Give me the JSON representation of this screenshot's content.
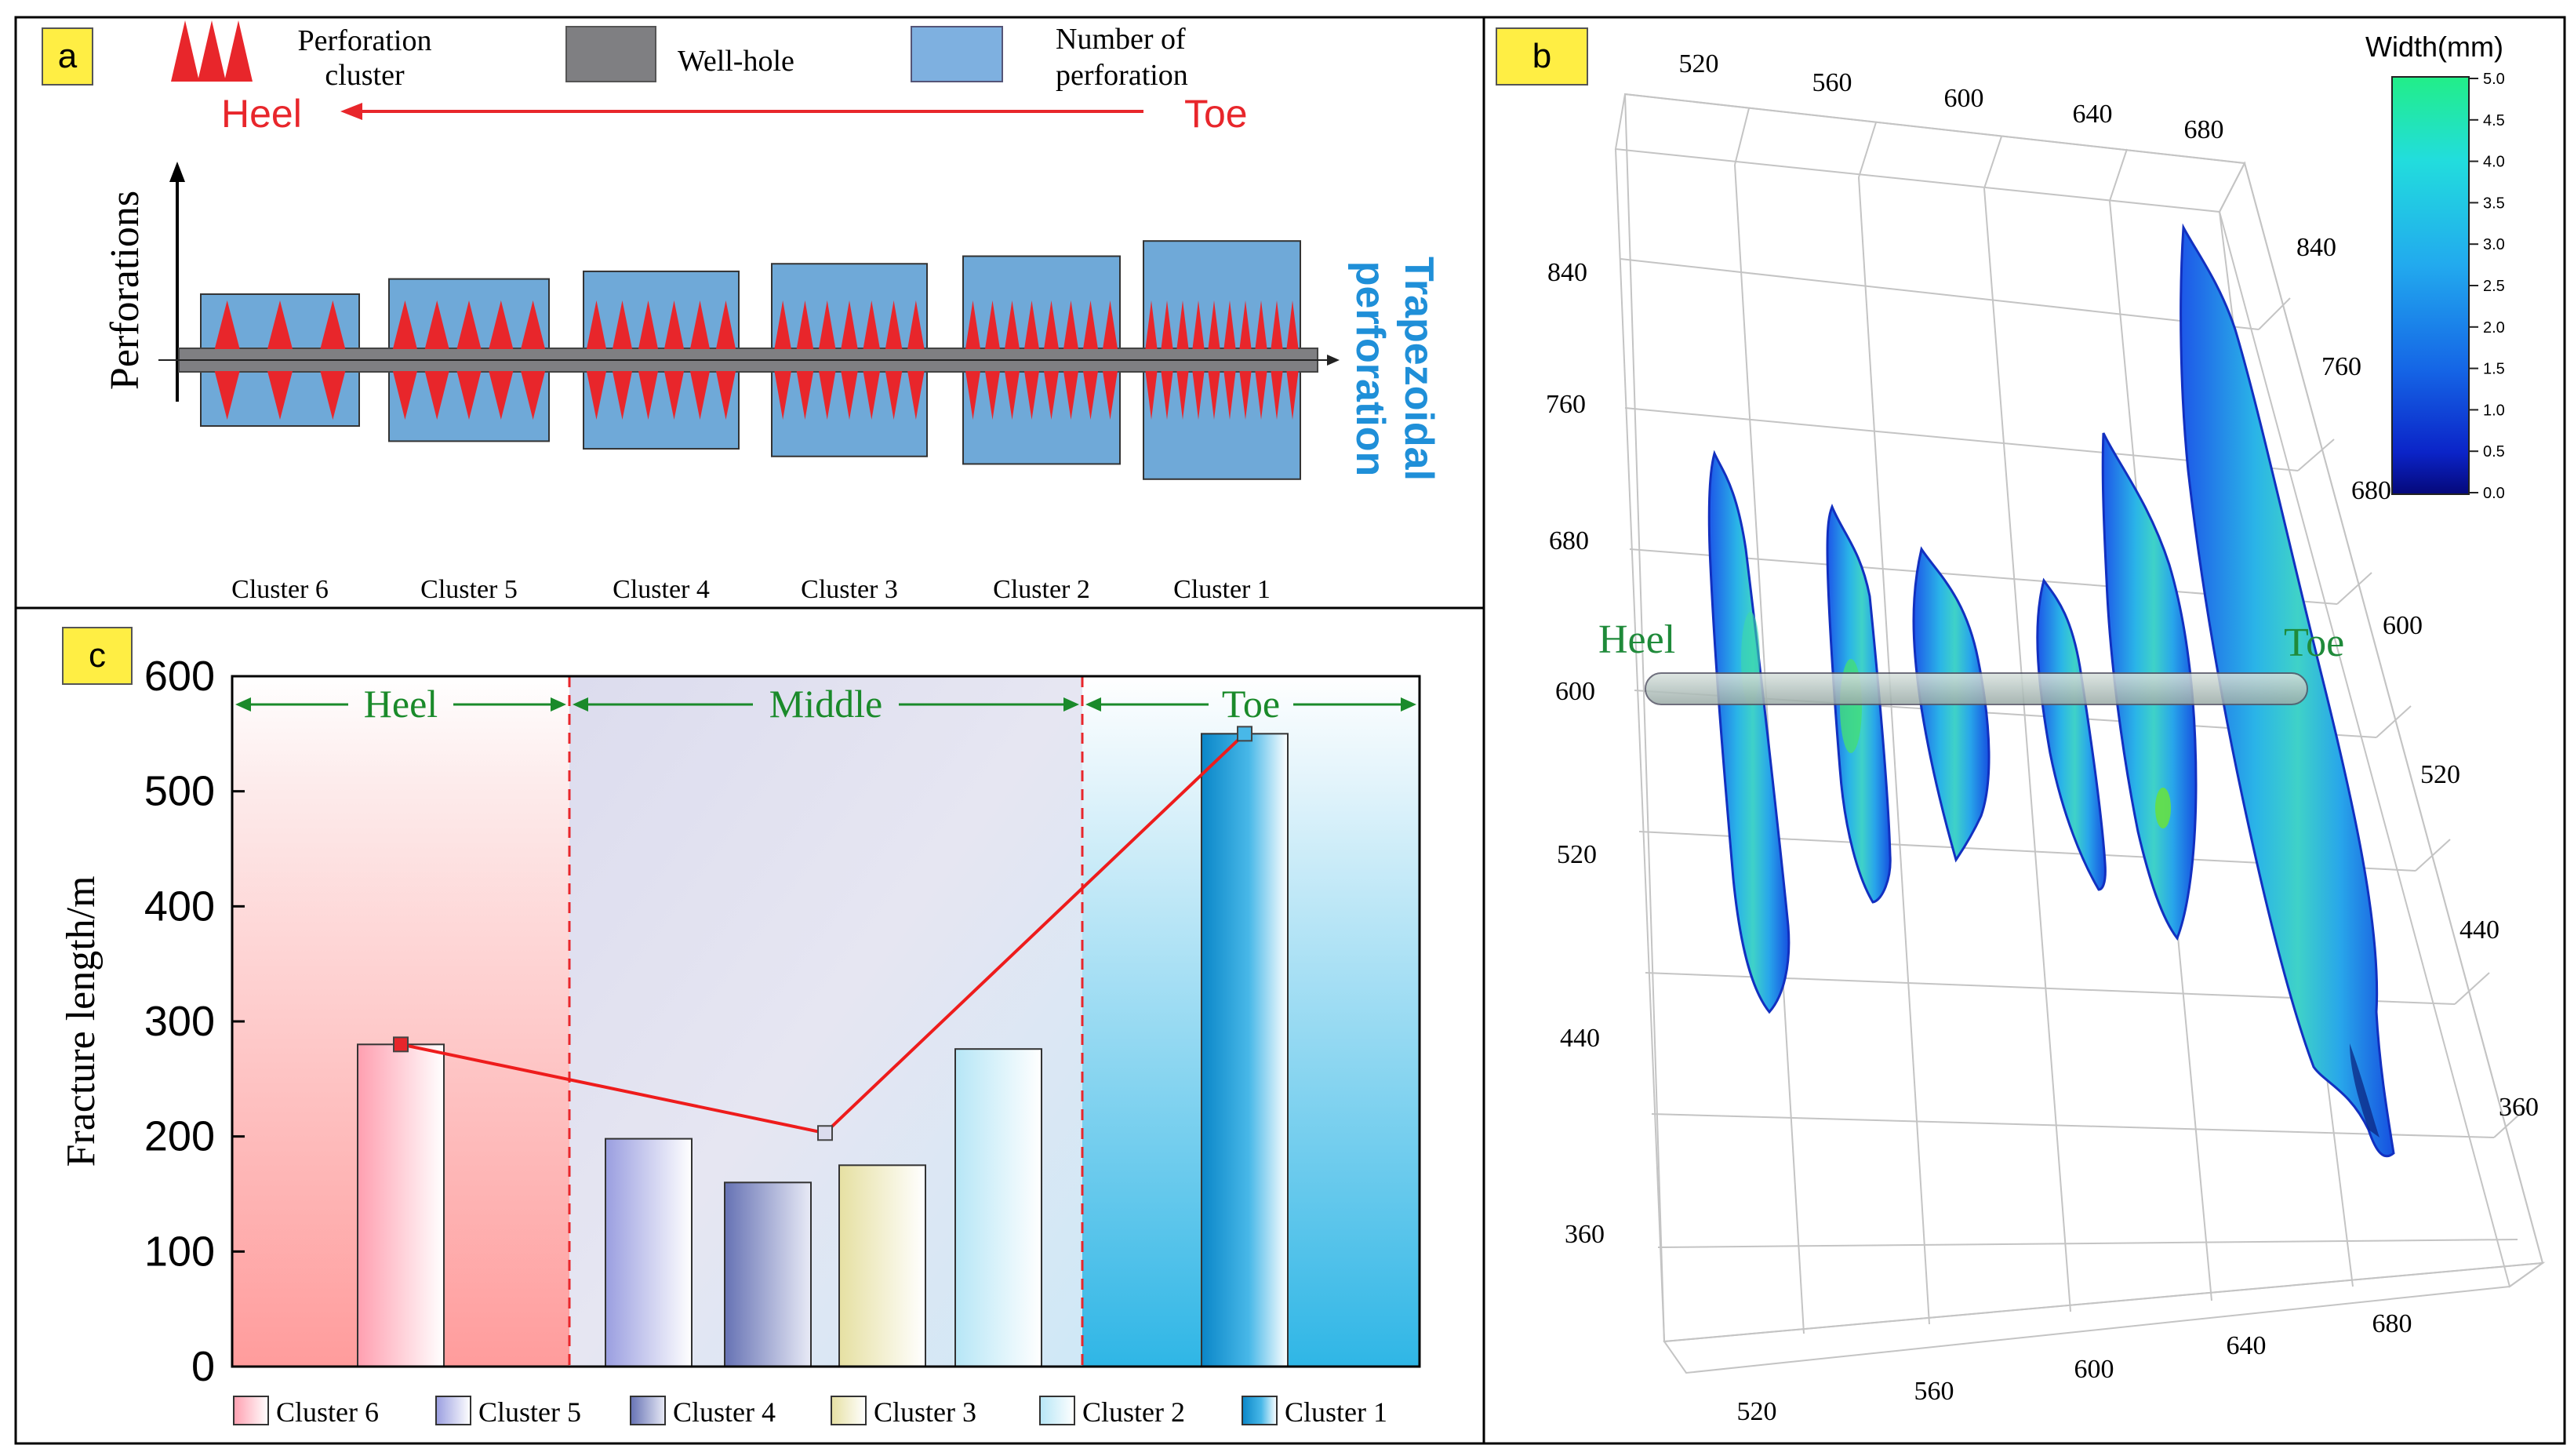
{
  "colors": {
    "perf_red": "#e8262b",
    "wellhole_gray": "#7f7f82",
    "box_blue": "#6fa9d8",
    "label_yellow": "#ffee44",
    "heel_toe_red": "#e8262b",
    "trap_blue": "#1f8fd8",
    "region_green": "#1a8a2a",
    "line_red": "#ee1c1c",
    "frac_green": "#1f8a3a"
  },
  "panel_a": {
    "label": "a",
    "legend": {
      "perforation_cluster": [
        "Perforation",
        "cluster"
      ],
      "wellhole": "Well-hole",
      "number_of_perforation": [
        "Number of",
        "perforation"
      ]
    },
    "heel": "Heel",
    "toe": "Toe",
    "y_axis_label": "Perforations",
    "trapezoidal": [
      "Trapezoidal",
      "perforation"
    ],
    "clusters": [
      {
        "name": "Cluster 6",
        "perforations": 3
      },
      {
        "name": "Cluster 5",
        "perforations": 5
      },
      {
        "name": "Cluster 4",
        "perforations": 6
      },
      {
        "name": "Cluster 3",
        "perforations": 7
      },
      {
        "name": "Cluster 2",
        "perforations": 8
      },
      {
        "name": "Cluster 1",
        "perforations": 10
      }
    ]
  },
  "panel_b": {
    "label": "b",
    "colorbar_title": "Width(mm)",
    "colorbar_ticks": [
      "5.0",
      "4.5",
      "4.0",
      "3.5",
      "3.0",
      "2.5",
      "2.0",
      "1.5",
      "1.0",
      "0.5",
      "0.0"
    ],
    "top_axis_ticks": [
      "520",
      "560",
      "600",
      "640",
      "680"
    ],
    "bottom_axis_ticks": [
      "520",
      "560",
      "600",
      "640",
      "680"
    ],
    "left_axis_ticks": [
      "840",
      "760",
      "680",
      "600",
      "520",
      "440",
      "360"
    ],
    "right_axis_ticks_upper": [
      "840",
      "760",
      "680",
      "600"
    ],
    "right_axis_ticks_lower": [
      "520",
      "440",
      "360"
    ],
    "heel": "Heel",
    "toe": "Toe"
  },
  "panel_c": {
    "label": "c"
  },
  "chart_data": {
    "type": "bar",
    "title": "",
    "xlabel": "",
    "ylabel": "Fracture length/m",
    "ylim": [
      0,
      600
    ],
    "yticks": [
      0,
      100,
      200,
      300,
      400,
      500,
      600
    ],
    "categories": [
      "Cluster 6",
      "Cluster 5",
      "Cluster 4",
      "Cluster 3",
      "Cluster 2",
      "Cluster 1"
    ],
    "values": [
      280,
      198,
      160,
      175,
      276,
      550
    ],
    "regions": [
      {
        "name": "Heel",
        "from": "Cluster 6",
        "to": "Cluster 6"
      },
      {
        "name": "Middle",
        "from": "Cluster 5",
        "to": "Cluster 2"
      },
      {
        "name": "Toe",
        "from": "Cluster 1",
        "to": "Cluster 1"
      }
    ],
    "average_line": [
      {
        "region": "Heel",
        "value": 280
      },
      {
        "region": "Middle",
        "value": 203
      },
      {
        "region": "Toe",
        "value": 550
      }
    ],
    "legend": [
      "Cluster 6",
      "Cluster 5",
      "Cluster 4",
      "Cluster 3",
      "Cluster 2",
      "Cluster 1"
    ],
    "legend_position": "bottom"
  }
}
